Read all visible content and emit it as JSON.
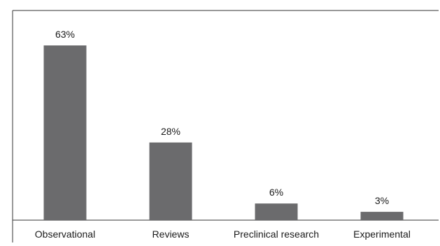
{
  "chart_data": {
    "type": "bar",
    "title": "",
    "xlabel": "",
    "ylabel": "",
    "categories": [
      "Observational",
      "Reviews",
      "Preclinical research",
      "Experimental"
    ],
    "values": [
      63,
      28,
      6,
      3
    ],
    "data_labels": [
      "63%",
      "28%",
      "6%",
      "3%"
    ],
    "unit": "%",
    "ylim": [
      0,
      63
    ],
    "grid": false,
    "legend": "none",
    "bar_color": "#6b6b6d",
    "axis_color": "#333333"
  }
}
